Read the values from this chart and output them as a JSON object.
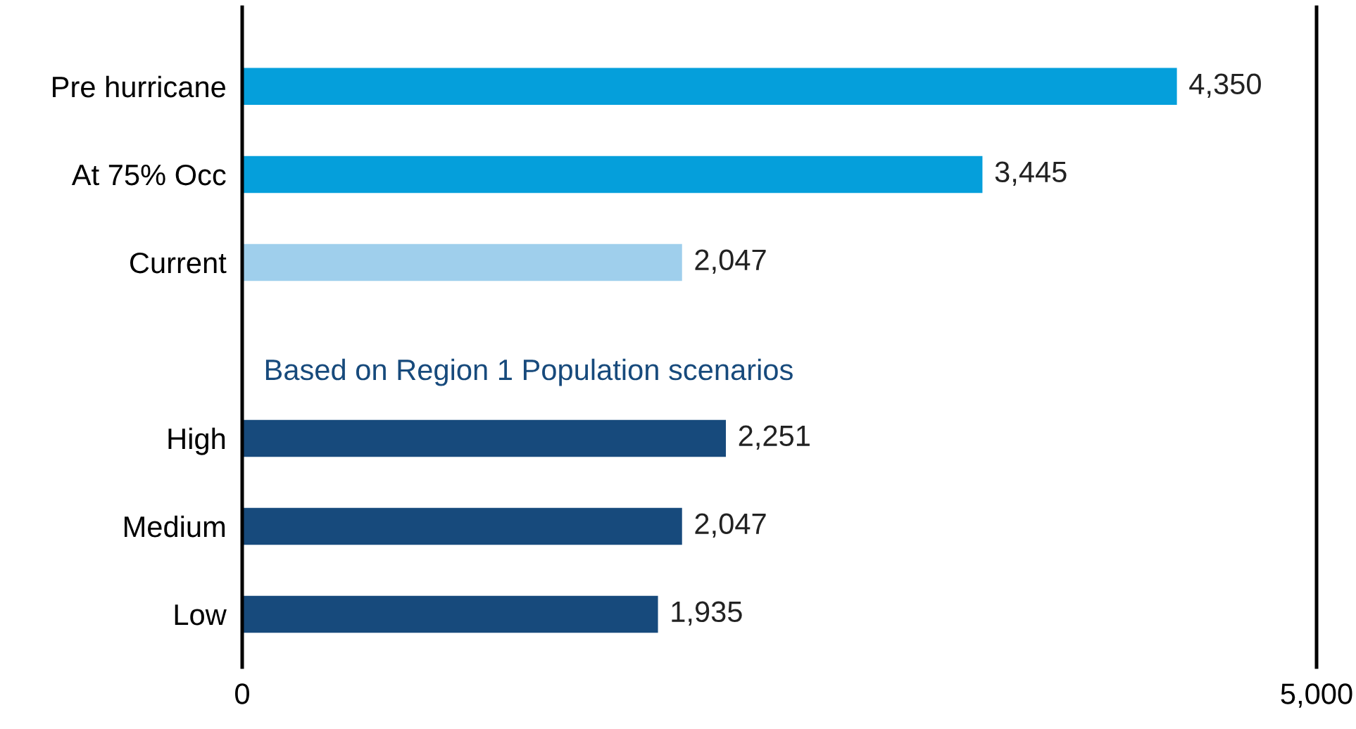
{
  "chart_data": {
    "type": "bar",
    "orientation": "horizontal",
    "categories": [
      "Pre hurricane",
      "At 75% Occ",
      "Current",
      null,
      "High",
      "Medium",
      "Low"
    ],
    "values": [
      4350,
      3445,
      2047,
      null,
      2251,
      2047,
      1935
    ],
    "colors": [
      "#059fdb",
      "#059fdb",
      "#9fcfec",
      null,
      "#174a7c",
      "#174a7c",
      "#174a7c"
    ],
    "value_labels": [
      "4,350",
      "3,445",
      "2,047",
      null,
      "2,251",
      "2,047",
      "1,935"
    ],
    "annotations": [
      "Based on Region 1 Population scenarios"
    ],
    "xlim": [
      0,
      5000
    ],
    "xticks": [
      0,
      {
        "value": 5000,
        "label": "5,000"
      }
    ],
    "grid": false,
    "legend": false
  }
}
